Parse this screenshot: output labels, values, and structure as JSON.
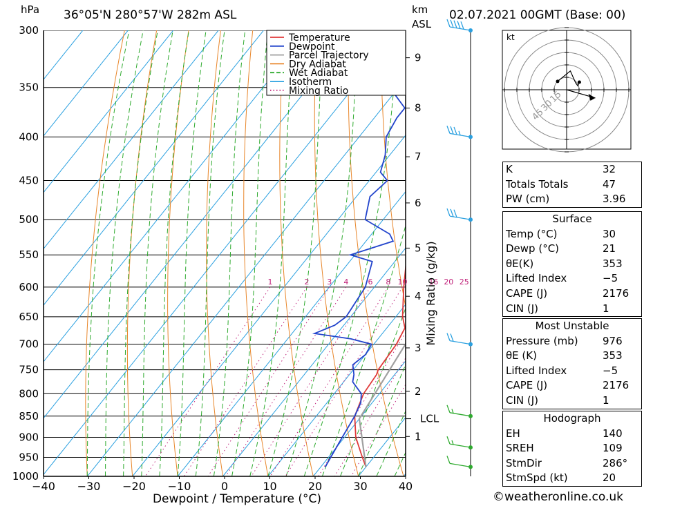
{
  "header": {
    "hpa_label": "hPa",
    "location": "36°05'N  280°57'W  282m  ASL",
    "km_label": "km",
    "asl_label": "ASL",
    "datetime": "02.07.2021  00GMT  (Base: 00)"
  },
  "chart_data": {
    "type": "line",
    "subtype": "skew-t log-p",
    "xlabel": "Dewpoint / Temperature (°C)",
    "ylabel_left": "hPa",
    "ylabel_right": "Mixing Ratio (g/kg)",
    "x_ticks": [
      "−40",
      "−30",
      "−20",
      "−10",
      "0",
      "10",
      "20",
      "30",
      "40"
    ],
    "pressure_levels": [
      300,
      350,
      400,
      450,
      500,
      550,
      600,
      650,
      700,
      750,
      800,
      850,
      900,
      950,
      1000
    ],
    "km_ticks": [
      {
        "label": "9",
        "p": 323
      },
      {
        "label": "8",
        "p": 370
      },
      {
        "label": "7",
        "p": 422
      },
      {
        "label": "6",
        "p": 478
      },
      {
        "label": "5",
        "p": 540
      },
      {
        "label": "4",
        "p": 615
      },
      {
        "label": "3",
        "p": 707
      },
      {
        "label": "2",
        "p": 795
      },
      {
        "label": "1",
        "p": 898
      }
    ],
    "lcl": {
      "label": "LCL",
      "p": 856
    },
    "mixing_ratio_labels": [
      "1",
      "2",
      "3",
      "4",
      "6",
      "8",
      "10",
      "16",
      "20",
      "25"
    ],
    "legend": [
      {
        "name": "Temperature",
        "color": "#e03a3a"
      },
      {
        "name": "Dewpoint",
        "color": "#2244cc"
      },
      {
        "name": "Parcel Trajectory",
        "color": "#a0a0a0"
      },
      {
        "name": "Dry Adiabat",
        "color": "#e8862a"
      },
      {
        "name": "Wet Adiabat",
        "color": "#2eaa2e"
      },
      {
        "name": "Isotherm",
        "color": "#2aa0e0"
      },
      {
        "name": "Mixing Ratio",
        "color": "#c0227a"
      }
    ],
    "series": [
      {
        "name": "Temperature",
        "color": "#e03a3a",
        "points": [
          [
            975,
            30
          ],
          [
            950,
            27.5
          ],
          [
            900,
            22.5
          ],
          [
            850,
            18.5
          ],
          [
            800,
            16.5
          ],
          [
            760,
            16
          ],
          [
            750,
            15.5
          ],
          [
            700,
            15
          ],
          [
            670,
            14
          ],
          [
            650,
            11.5
          ],
          [
            600,
            6.5
          ],
          [
            550,
            1.5
          ],
          [
            530,
            0
          ],
          [
            515,
            0
          ],
          [
            500,
            -1
          ],
          [
            450,
            -7
          ],
          [
            400,
            -13
          ],
          [
            385,
            -15.5
          ],
          [
            350,
            -20
          ],
          [
            300,
            -28
          ]
        ]
      },
      {
        "name": "Dewpoint",
        "color": "#2244cc",
        "points": [
          [
            975,
            21
          ],
          [
            950,
            20.5
          ],
          [
            900,
            19.5
          ],
          [
            850,
            18.5
          ],
          [
            820,
            17.5
          ],
          [
            800,
            16
          ],
          [
            775,
            12
          ],
          [
            760,
            11
          ],
          [
            740,
            9
          ],
          [
            720,
            10
          ],
          [
            700,
            9.5
          ],
          [
            690,
            4
          ],
          [
            680,
            -5
          ],
          [
            665,
            -2
          ],
          [
            650,
            -1
          ],
          [
            600,
            -2
          ],
          [
            560,
            -5
          ],
          [
            550,
            -11
          ],
          [
            530,
            -4
          ],
          [
            520,
            -6
          ],
          [
            500,
            -14
          ],
          [
            470,
            -17
          ],
          [
            450,
            -16
          ],
          [
            440,
            -19
          ],
          [
            420,
            -21
          ],
          [
            400,
            -24
          ],
          [
            380,
            -25
          ],
          [
            370,
            -25
          ],
          [
            350,
            -32
          ],
          [
            330,
            -40
          ],
          [
            315,
            -40
          ],
          [
            300,
            -41
          ]
        ]
      },
      {
        "name": "Parcel Trajectory",
        "color": "#a0a0a0",
        "points": [
          [
            975,
            30
          ],
          [
            856,
            20
          ],
          [
            800,
            19
          ],
          [
            700,
            17
          ],
          [
            600,
            13
          ],
          [
            500,
            8
          ],
          [
            400,
            0
          ],
          [
            370,
            -3
          ]
        ]
      }
    ],
    "wind_barbs": [
      {
        "p": 300,
        "kt": 50,
        "color": "#2aa0e0"
      },
      {
        "p": 400,
        "kt": 35,
        "color": "#2aa0e0"
      },
      {
        "p": 500,
        "kt": 30,
        "color": "#2aa0e0"
      },
      {
        "p": 700,
        "kt": 20,
        "color": "#2aa0e0"
      },
      {
        "p": 850,
        "kt": 15,
        "color": "#2eaa2e"
      },
      {
        "p": 925,
        "kt": 15,
        "color": "#2eaa2e"
      },
      {
        "p": 975,
        "kt": 10,
        "color": "#2eaa2e"
      }
    ],
    "hodograph": {
      "units": "kt",
      "ring_labels": [
        "15",
        "30",
        "45"
      ],
      "points": [
        [
          -12,
          14
        ],
        [
          5,
          28
        ],
        [
          12,
          12
        ],
        [
          15,
          8
        ],
        [
          17,
          13
        ]
      ],
      "storm_motion": {
        "dir": 286,
        "speed": 20
      }
    }
  },
  "indices": {
    "general": [
      {
        "key": "K",
        "value": "32"
      },
      {
        "key": "Totals Totals",
        "value": "47"
      },
      {
        "key": "PW (cm)",
        "value": "3.96"
      }
    ],
    "surface": {
      "title": "Surface",
      "rows": [
        {
          "key": "Temp (°C)",
          "value": "30"
        },
        {
          "key": "Dewp (°C)",
          "value": "21"
        },
        {
          "key": "θE(K)",
          "value": "353"
        },
        {
          "key": "Lifted Index",
          "value": "−5"
        },
        {
          "key": "CAPE (J)",
          "value": "2176"
        },
        {
          "key": "CIN (J)",
          "value": "1"
        }
      ]
    },
    "most_unstable": {
      "title": "Most Unstable",
      "rows": [
        {
          "key": "Pressure (mb)",
          "value": "976"
        },
        {
          "key": "θE (K)",
          "value": "353"
        },
        {
          "key": "Lifted Index",
          "value": "−5"
        },
        {
          "key": "CAPE (J)",
          "value": "2176"
        },
        {
          "key": "CIN (J)",
          "value": "1"
        }
      ]
    },
    "hodograph": {
      "title": "Hodograph",
      "rows": [
        {
          "key": "EH",
          "value": "140"
        },
        {
          "key": "SREH",
          "value": "109"
        },
        {
          "key": "StmDir",
          "value": "286°"
        },
        {
          "key": "StmSpd (kt)",
          "value": "20"
        }
      ]
    }
  },
  "footer": {
    "copyright": "©weatheronline.co.uk"
  }
}
